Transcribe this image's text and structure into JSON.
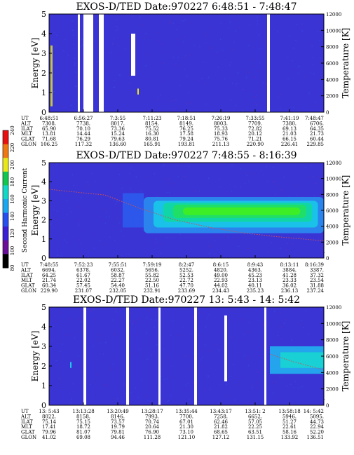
{
  "colorbar": {
    "label": "Second Harmonic Current",
    "ticks": [
      "80",
      "100",
      "120",
      "140",
      "160",
      "180",
      "200",
      "220",
      "240"
    ],
    "colors": [
      "#000000",
      "#6a0f9a",
      "#3b1fd6",
      "#2850f0",
      "#1aa8f0",
      "#12d8c8",
      "#10c850",
      "#e8e81a",
      "#f07810",
      "#e81010"
    ]
  },
  "chart_data": [
    {
      "type": "heatmap",
      "title": "EXOS-D/TED   Date:970227  6:48:51 - 7:48:47",
      "ylabel": "Energy [eV]",
      "y2label": "Temperature [K]",
      "ylim": [
        0,
        5
      ],
      "y2lim": [
        0,
        12000
      ],
      "yticks": [
        "0",
        "1",
        "2",
        "3",
        "4",
        "5"
      ],
      "y2ticks": [
        "0",
        "2000",
        "4000",
        "6000",
        "8000",
        "10000",
        "12000"
      ],
      "background_color": "#3b34d4",
      "row_labels": [
        "UT",
        "ALT",
        "ILAT",
        "MLT",
        "GLAT",
        "GLON"
      ],
      "columns": [
        [
          "6:48:51",
          "7308.",
          "65.90",
          "13.81",
          "71.68",
          "106.25"
        ],
        [
          "6:56:27",
          "7738.",
          "70.10",
          "14.44",
          "76.29",
          "117.32"
        ],
        [
          "7:3:55",
          "8017.",
          "73.36",
          "15.24",
          "79.63",
          "136.60"
        ],
        [
          "7:11:23",
          "8154.",
          "75.52",
          "16.30",
          "80.81",
          "165.91"
        ],
        [
          "7:18:51",
          "8149.",
          "76.25",
          "17.58",
          "79.24",
          "193.81"
        ],
        [
          "7:26:19",
          "8003.",
          "75.33",
          "18.93",
          "75.76",
          "211.13"
        ],
        [
          "7:33:55",
          "7709.",
          "72.82",
          "20.12",
          "71.21",
          "220.90"
        ],
        [
          "7:41:19",
          "7380.",
          "69.13",
          "21.03",
          "66.15",
          "226.41"
        ],
        [
          "7:48:47",
          "6706.",
          "64.35",
          "21.73",
          "60.44",
          "229.85"
        ]
      ]
    },
    {
      "type": "heatmap",
      "title": "EXOS-D/TED   Date:970227  7:48:55 - 8:16:39",
      "ylabel": "Energy [eV]",
      "y2label": "Temperature [K]",
      "ylim": [
        0,
        5
      ],
      "y2lim": [
        0,
        12000
      ],
      "yticks": [
        "0",
        "1",
        "2",
        "3",
        "4",
        "5"
      ],
      "y2ticks": [
        "0",
        "2000",
        "4000",
        "6000",
        "8000",
        "10000",
        "12000"
      ],
      "background_color": "#3b34d4",
      "row_labels": [
        "UT",
        "ALT",
        "ILAT",
        "MLT",
        "GLAT",
        "GLON"
      ],
      "columns": [
        [
          "7:48:55",
          "6694.",
          "64.25",
          "21.74",
          "60.34",
          "229.90"
        ],
        [
          "7:52:23",
          "6378.",
          "61.67",
          "22.02",
          "57.45",
          "231.07"
        ],
        [
          "7:55:51",
          "6032.",
          "58.87",
          "22.27",
          "54.40",
          "232.05"
        ],
        [
          "7:59:19",
          "5656.",
          "55.82",
          "22.50",
          "51.16",
          "232.91"
        ],
        [
          "8:2:47",
          "5252.",
          "52.53",
          "22.72",
          "47.70",
          "233.69"
        ],
        [
          "8:6:15",
          "4820.",
          "49.00",
          "22.93",
          "44.02",
          "234.43"
        ],
        [
          "8:9:43",
          "4363.",
          "45.23",
          "23.13",
          "40.11",
          "235.23"
        ],
        [
          "8:13:11",
          "3884.",
          "41.28",
          "23.33",
          "36.02",
          "236.13"
        ],
        [
          "8:16:39",
          "3387.",
          "37.32",
          "23.54",
          "31.88",
          "237.24"
        ]
      ]
    },
    {
      "type": "heatmap",
      "title": "EXOS-D/TED   Date:970227  13: 5:43 - 14: 5:42",
      "ylabel": "Energy [eV]",
      "y2label": "Temperature [K]",
      "ylim": [
        0,
        5
      ],
      "y2lim": [
        0,
        12000
      ],
      "yticks": [
        "0",
        "1",
        "2",
        "3",
        "4",
        "5"
      ],
      "y2ticks": [
        "0",
        "2000",
        "4000",
        "6000",
        "8000",
        "10000",
        "12000"
      ],
      "background_color": "#3b34d4",
      "row_labels": [
        "UT",
        "ALT",
        "ILAT",
        "MLT",
        "GLAT",
        "GLON"
      ],
      "columns": [
        [
          "13: 5:43",
          "8022.",
          "75.14",
          "17.41",
          "79.96",
          "41.02"
        ],
        [
          "13:13:28",
          "8158.",
          "75.15",
          "18.72",
          "81.07",
          "69.08"
        ],
        [
          "13:20:49",
          "8146.",
          "73.57",
          "19.79",
          "79.81",
          "94.46"
        ],
        [
          "13:28:17",
          "7993.",
          "70.74",
          "20.64",
          "76.90",
          "111.28"
        ],
        [
          "13:35:44",
          "7700.",
          "67.01",
          "21.30",
          "73.10",
          "121.10"
        ],
        [
          "13:43:17",
          "7258.",
          "62.46",
          "21.82",
          "68.65",
          "127.12"
        ],
        [
          "13:51: 2",
          "6652.",
          "57.05",
          "22.25",
          "63.51",
          "131.15"
        ],
        [
          "13:58:18",
          "5946.",
          "51.27",
          "22.61",
          "58.16",
          "133.92"
        ],
        [
          "14: 5:42",
          "5095.",
          "44.73",
          "22.94",
          "52.20",
          "136.51"
        ]
      ]
    }
  ]
}
